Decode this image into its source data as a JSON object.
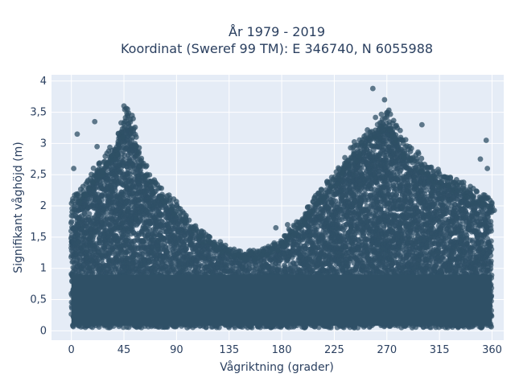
{
  "chart_data": {
    "type": "scatter",
    "title": "År 1979 - 2019",
    "subtitle": "Koordinat (Sweref 99 TM): E 346740, N 6055988",
    "xlabel": "Vågriktning (grader)",
    "ylabel": "Signifikant våghöjd (m)",
    "xlim": [
      -17,
      370
    ],
    "ylim": [
      -0.15,
      4.1
    ],
    "xticks": [
      0,
      45,
      90,
      135,
      180,
      225,
      270,
      315,
      360
    ],
    "xtick_labels": [
      "0",
      "45",
      "90",
      "135",
      "180",
      "225",
      "270",
      "315",
      "360"
    ],
    "yticks": [
      0,
      0.5,
      1,
      1.5,
      2,
      2.5,
      3,
      3.5,
      4
    ],
    "ytick_labels": [
      "0",
      "0,5",
      "1",
      "1,5",
      "2",
      "2,5",
      "3",
      "3,5",
      "4"
    ],
    "grid": true,
    "legend": "none",
    "marker_color": "#2f5066",
    "background_color": "#e5ecf6",
    "envelope": {
      "description_points_x": [
        0,
        10,
        20,
        30,
        40,
        45,
        50,
        55,
        60,
        70,
        80,
        90,
        100,
        110,
        120,
        135,
        150,
        165,
        180,
        195,
        210,
        225,
        240,
        250,
        260,
        265,
        270,
        275,
        280,
        290,
        300,
        315,
        330,
        345,
        360
      ],
      "upper_y": [
        2.0,
        2.2,
        2.5,
        2.7,
        3.0,
        3.4,
        3.3,
        3.0,
        2.6,
        2.3,
        2.1,
        1.9,
        1.7,
        1.5,
        1.4,
        1.25,
        1.2,
        1.25,
        1.4,
        1.7,
        2.1,
        2.4,
        2.8,
        3.0,
        3.2,
        3.3,
        3.35,
        3.2,
        3.0,
        2.8,
        2.6,
        2.4,
        2.3,
        2.1,
        2.0
      ]
    },
    "outliers": [
      {
        "x": 2,
        "y": 2.6
      },
      {
        "x": 5,
        "y": 3.15
      },
      {
        "x": 20,
        "y": 3.35
      },
      {
        "x": 22,
        "y": 2.95
      },
      {
        "x": 45,
        "y": 3.6
      },
      {
        "x": 48,
        "y": 3.55
      },
      {
        "x": 52,
        "y": 3.45
      },
      {
        "x": 175,
        "y": 1.65
      },
      {
        "x": 185,
        "y": 1.7
      },
      {
        "x": 258,
        "y": 3.88
      },
      {
        "x": 268,
        "y": 3.7
      },
      {
        "x": 300,
        "y": 3.3
      },
      {
        "x": 355,
        "y": 3.05
      },
      {
        "x": 350,
        "y": 2.75
      },
      {
        "x": 356,
        "y": 2.6
      }
    ]
  }
}
